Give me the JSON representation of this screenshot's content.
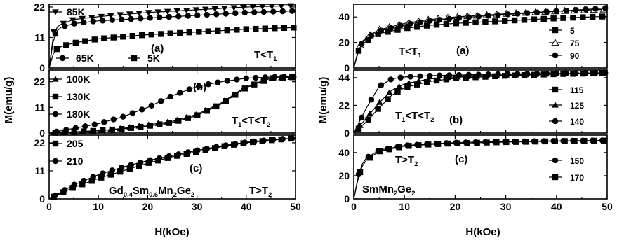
{
  "figure": {
    "panels": [
      {
        "id": "Lt-a",
        "label": "(a)",
        "condition": [
          "T<T",
          "1",
          "",
          "",
          ""
        ],
        "legend": [
          "85K",
          "65K",
          "5K"
        ],
        "yticks": [
          "0",
          "11",
          "22"
        ]
      },
      {
        "id": "Lt-b",
        "label": "(b)",
        "condition": [
          "T",
          "1",
          "<T<T",
          "2",
          ""
        ],
        "legend": [
          "100K",
          "130K",
          "180K"
        ],
        "yticks": [
          "0",
          "11",
          "22"
        ]
      },
      {
        "id": "Lt-c",
        "label": "(c)",
        "condition": [
          "T>T",
          "2",
          "",
          "",
          ""
        ],
        "legend": [
          "205",
          "210"
        ],
        "yticks": [
          "0",
          "11",
          "22"
        ]
      },
      {
        "id": "Rt-a",
        "label": "(a)",
        "condition": [
          "T<T",
          "1",
          "",
          "",
          ""
        ],
        "legend": [
          "5",
          "75",
          "90"
        ],
        "yticks": [
          "0",
          "20",
          "40"
        ]
      },
      {
        "id": "Rt-b",
        "label": "(b)",
        "condition": [
          "T",
          "1",
          "<T<T",
          "2",
          ""
        ],
        "legend": [
          "115",
          "125",
          "140"
        ],
        "yticks": [
          "0",
          "22",
          "44"
        ]
      },
      {
        "id": "Rt-c",
        "label": "(c)",
        "condition": [
          "T>T",
          "2",
          "",
          "",
          ""
        ],
        "legend": [
          "150",
          "170"
        ],
        "yticks": [
          "0",
          "20",
          "40"
        ]
      }
    ],
    "ylabel": "M(emu/g)",
    "xlabel": "H(kOe)",
    "xticks": [
      "0",
      "10",
      "20",
      "30",
      "40",
      "50"
    ],
    "compound_left": [
      "Gd",
      "0.4",
      "Sm",
      "0.6",
      "Mn",
      "2",
      "Ge",
      "2"
    ],
    "compound_right": [
      "SmMn",
      "2",
      "Ge",
      "2"
    ]
  },
  "chart_data": [
    {
      "type": "line",
      "panel": "left (a)",
      "xlim": [
        0,
        50
      ],
      "ylim": [
        0,
        23
      ],
      "x": [
        0,
        1,
        2,
        5,
        10,
        15,
        20,
        30,
        40,
        50
      ],
      "series": [
        {
          "name": "85K",
          "marker": "triangle-down",
          "values": [
            0,
            13.5,
            15.5,
            17.5,
            18.5,
            19.3,
            20,
            21,
            22,
            22.5
          ]
        },
        {
          "name": "65K",
          "marker": "circle",
          "values": [
            0,
            11.5,
            14.5,
            16,
            17,
            17.5,
            18,
            19,
            20,
            20.6
          ]
        },
        {
          "name": "5K",
          "marker": "square",
          "values": [
            0,
            6,
            7.5,
            9,
            10.5,
            11.3,
            12,
            13,
            14,
            14.6
          ]
        }
      ]
    },
    {
      "type": "line",
      "panel": "left (b)",
      "xlim": [
        0,
        50
      ],
      "ylim": [
        0,
        27
      ],
      "x": [
        0,
        5,
        10,
        15,
        20,
        25,
        30,
        35,
        40,
        45,
        50
      ],
      "series": [
        {
          "name": "100K",
          "marker": "triangle-up",
          "values": [
            0,
            0.5,
            1,
            2,
            3.5,
            5,
            8,
            13,
            20,
            23.5,
            24
          ]
        },
        {
          "name": "130K",
          "marker": "square",
          "values": [
            0,
            0.5,
            1,
            1.8,
            3,
            4.5,
            7.5,
            12.5,
            19.5,
            23.5,
            24
          ]
        },
        {
          "name": "180K",
          "marker": "circle",
          "values": [
            0,
            2,
            4,
            7,
            11,
            16,
            20,
            22,
            23.5,
            24,
            24.2
          ]
        }
      ]
    },
    {
      "type": "line",
      "panel": "left (c)",
      "xlim": [
        0,
        50
      ],
      "ylim": [
        0,
        25
      ],
      "x": [
        0,
        5,
        10,
        15,
        20,
        25,
        30,
        35,
        40,
        45,
        50
      ],
      "series": [
        {
          "name": "205",
          "marker": "square",
          "values": [
            0,
            4.5,
            8,
            11,
            14,
            16.5,
            18.5,
            20.5,
            22,
            23,
            23.8
          ]
        },
        {
          "name": "210",
          "marker": "circle",
          "values": [
            0,
            5.5,
            9.5,
            12.5,
            15,
            17,
            19,
            20.8,
            22.2,
            23.2,
            23.9
          ]
        }
      ]
    },
    {
      "type": "line",
      "panel": "right (a)",
      "xlim": [
        0,
        50
      ],
      "ylim": [
        0,
        50
      ],
      "x": [
        0,
        1,
        2,
        5,
        10,
        15,
        20,
        30,
        40,
        50
      ],
      "series": [
        {
          "name": "5",
          "marker": "square",
          "values": [
            0,
            14,
            20,
            27,
            31,
            33.5,
            35,
            37,
            39,
            40.5
          ]
        },
        {
          "name": "75",
          "marker": "triangle-up-open",
          "values": [
            0,
            16,
            23,
            30,
            35,
            38,
            40,
            42.5,
            44.5,
            46
          ]
        },
        {
          "name": "90",
          "marker": "circle",
          "values": [
            0,
            15,
            22,
            29,
            34,
            37,
            39,
            42,
            44.5,
            47
          ]
        }
      ]
    },
    {
      "type": "line",
      "panel": "right (b)",
      "xlim": [
        0,
        50
      ],
      "ylim": [
        0,
        50
      ],
      "x": [
        0,
        2.5,
        5,
        7.5,
        10,
        15,
        20,
        30,
        40,
        50
      ],
      "series": [
        {
          "name": "115",
          "marker": "square",
          "values": [
            0,
            9,
            20,
            30,
            36,
            41,
            43.5,
            45.5,
            46.8,
            47.5
          ]
        },
        {
          "name": "125",
          "marker": "triangle-up",
          "values": [
            0,
            12,
            24,
            34,
            39,
            43,
            44.5,
            46,
            47,
            47.6
          ]
        },
        {
          "name": "140",
          "marker": "circle",
          "values": [
            0,
            20,
            37,
            43,
            44.5,
            45.5,
            46,
            46.8,
            47.3,
            47.7
          ]
        }
      ]
    },
    {
      "type": "line",
      "panel": "right (c)",
      "xlim": [
        0,
        50
      ],
      "ylim": [
        0,
        55
      ],
      "x": [
        0,
        1,
        2,
        5,
        10,
        15,
        20,
        30,
        40,
        50
      ],
      "series": [
        {
          "name": "150",
          "marker": "circle",
          "values": [
            0,
            22,
            34,
            42,
            46,
            47.5,
            48.5,
            49.5,
            50,
            50.5
          ]
        },
        {
          "name": "170",
          "marker": "square",
          "values": [
            0,
            20,
            32,
            41,
            45.5,
            47,
            48,
            49,
            49.8,
            50.3
          ]
        }
      ]
    }
  ]
}
